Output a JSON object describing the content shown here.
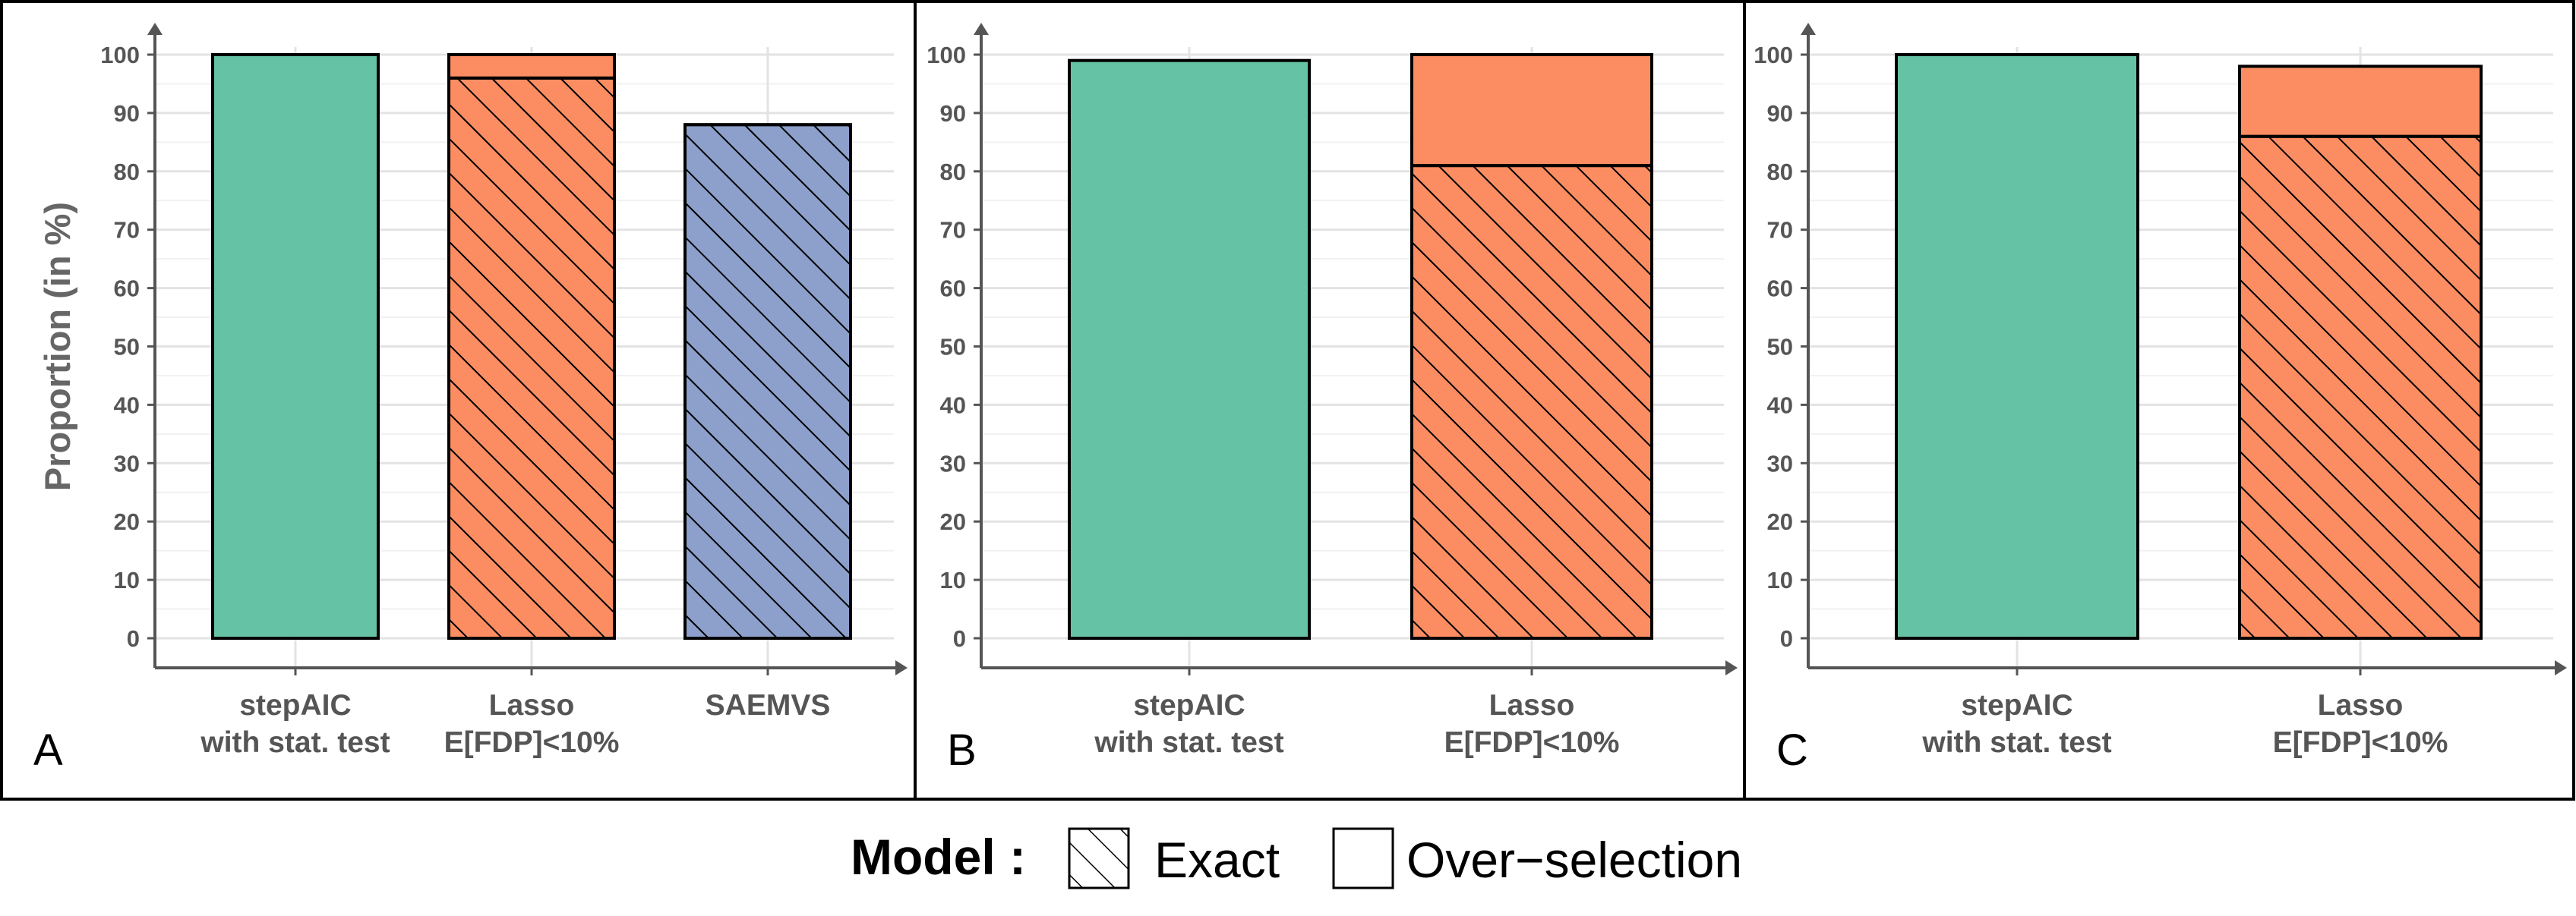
{
  "chart_data": [
    {
      "type": "bar",
      "stacked": true,
      "panel_label": "A",
      "ylabel": "Proportion (in %)",
      "ylim": [
        0,
        100
      ],
      "yticks": [
        "0",
        "10",
        "20",
        "30",
        "40",
        "50",
        "60",
        "70",
        "80",
        "90",
        "100"
      ],
      "categories": [
        [
          "stepAIC",
          "with stat. test"
        ],
        [
          "Lasso",
          "E[FDP]<10%"
        ],
        [
          "SAEMVS"
        ]
      ],
      "colors": [
        "#66c2a5",
        "#fc8d62",
        "#8da0cb"
      ],
      "series": [
        {
          "name": "Exact",
          "hatched": true,
          "values": [
            0,
            96,
            88
          ]
        },
        {
          "name": "Over-selection",
          "hatched": false,
          "values": [
            100,
            4,
            0
          ]
        }
      ],
      "grid": true
    },
    {
      "type": "bar",
      "stacked": true,
      "panel_label": "B",
      "ylim": [
        0,
        100
      ],
      "yticks": [
        "0",
        "10",
        "20",
        "30",
        "40",
        "50",
        "60",
        "70",
        "80",
        "90",
        "100"
      ],
      "categories": [
        [
          "stepAIC",
          "with stat. test"
        ],
        [
          "Lasso",
          "E[FDP]<10%"
        ]
      ],
      "colors": [
        "#66c2a5",
        "#fc8d62"
      ],
      "series": [
        {
          "name": "Exact",
          "hatched": true,
          "values": [
            0,
            81
          ]
        },
        {
          "name": "Over-selection",
          "hatched": false,
          "values": [
            99,
            19
          ]
        }
      ],
      "grid": true
    },
    {
      "type": "bar",
      "stacked": true,
      "panel_label": "C",
      "ylim": [
        0,
        100
      ],
      "yticks": [
        "0",
        "10",
        "20",
        "30",
        "40",
        "50",
        "60",
        "70",
        "80",
        "90",
        "100"
      ],
      "categories": [
        [
          "stepAIC",
          "with stat. test"
        ],
        [
          "Lasso",
          "E[FDP]<10%"
        ]
      ],
      "colors": [
        "#66c2a5",
        "#fc8d62"
      ],
      "series": [
        {
          "name": "Exact",
          "hatched": true,
          "values": [
            0,
            86
          ]
        },
        {
          "name": "Over-selection",
          "hatched": false,
          "values": [
            100,
            12
          ]
        }
      ],
      "grid": true
    }
  ],
  "legend": {
    "title": "Model :",
    "placement": "bottom-center",
    "items": [
      {
        "label": "Exact",
        "hatched": true
      },
      {
        "label": "Over−selection",
        "hatched": false
      }
    ]
  }
}
